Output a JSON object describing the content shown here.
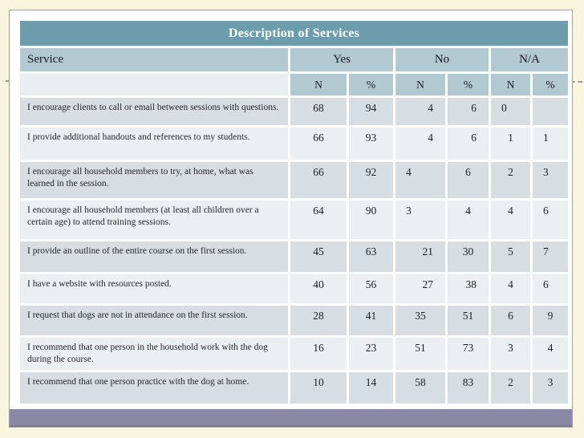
{
  "slide": {
    "table": {
      "title": "Description of Services",
      "header": {
        "service": "Service",
        "groups": [
          "Yes",
          "No",
          "N/A"
        ],
        "sub": [
          "N",
          "%",
          "N",
          "%",
          "N",
          "%"
        ]
      },
      "rows": [
        {
          "service": "I encourage clients to call or email between sessions with questions.",
          "values": [
            "68",
            "94",
            "4",
            "6",
            "0",
            ""
          ],
          "highlight": "yes",
          "aligns": [
            "c",
            "c",
            "r",
            "r",
            "l",
            "c"
          ]
        },
        {
          "service": "I provide additional handouts and references to my students.",
          "values": [
            "66",
            "93",
            "4",
            "6",
            "1",
            "1"
          ],
          "highlight": "yes",
          "aligns": [
            "c",
            "c",
            "r",
            "r",
            "c",
            "l"
          ]
        },
        {
          "service": "I encourage all household members to try, at home, what was learned in the session.",
          "values": [
            "66",
            "92",
            "4",
            "6",
            "2",
            "3"
          ],
          "highlight": "yes",
          "aligns": [
            "c",
            "c",
            "l",
            "c",
            "c",
            "l"
          ]
        },
        {
          "service": "I encourage all household members (at least all children over a certain age) to attend training sessions.",
          "values": [
            "64",
            "90",
            "3",
            "4",
            "4",
            "6"
          ],
          "highlight": "yes",
          "aligns": [
            "c",
            "c",
            "l",
            "c",
            "c",
            "l"
          ]
        },
        {
          "service": "I provide an outline of the entire course on the first session.",
          "values": [
            "45",
            "63",
            "21",
            "30",
            "5",
            "7"
          ],
          "highlight": "yes",
          "aligns": [
            "c",
            "c",
            "r",
            "c",
            "c",
            "l"
          ]
        },
        {
          "service": "I have a website with resources posted.",
          "values": [
            "40",
            "56",
            "27",
            "38",
            "4",
            "6"
          ],
          "highlight": "yes",
          "aligns": [
            "c",
            "c",
            "r",
            "r",
            "c",
            "l"
          ]
        },
        {
          "service": "I request that dogs are not in attendance on the first session.",
          "values": [
            "28",
            "41",
            "35",
            "51",
            "6",
            "9"
          ],
          "highlight": "no",
          "aligns": [
            "c",
            "c",
            "c",
            "c",
            "c",
            "c"
          ]
        },
        {
          "service": "I recommend that one person in the household work with the dog during the course.",
          "values": [
            "16",
            "23",
            "51",
            "73",
            "3",
            "4"
          ],
          "highlight": "no",
          "aligns": [
            "c",
            "c",
            "c",
            "c",
            "c",
            "c"
          ]
        },
        {
          "service": "I recommend that one person practice with the dog at home.",
          "values": [
            "10",
            "14",
            "58",
            "83",
            "2",
            "3"
          ],
          "highlight": "no",
          "aligns": [
            "c",
            "c",
            "c",
            "c",
            "c",
            "c"
          ]
        }
      ]
    },
    "colors": {
      "page_background": "#f9f4dd",
      "title_bar": "#6d9dac",
      "header_row": "#b3c9d2",
      "subheader_first_cell": "#e8eef1",
      "band_dark": "#d6dee3",
      "band_light": "#ebeff2",
      "highlight": "#f7ecc4",
      "footer_bar": "#8c89a6"
    }
  },
  "chart_data": {
    "type": "table",
    "title": "Description of Services",
    "columns": [
      "Service",
      "Yes N",
      "Yes %",
      "No N",
      "No %",
      "N/A N",
      "N/A %"
    ],
    "rows": [
      [
        "I encourage clients to call or email between sessions with questions.",
        68,
        94,
        4,
        6,
        0,
        null
      ],
      [
        "I provide additional handouts and references to my students.",
        66,
        93,
        4,
        6,
        1,
        1
      ],
      [
        "I encourage all household members to try, at home, what was learned in the session.",
        66,
        92,
        4,
        6,
        2,
        3
      ],
      [
        "I encourage all household members (at least all children over a certain age) to attend training sessions.",
        64,
        90,
        3,
        4,
        4,
        6
      ],
      [
        "I provide an outline of the entire course on the first session.",
        45,
        63,
        21,
        30,
        5,
        7
      ],
      [
        "I have a website with resources posted.",
        40,
        56,
        27,
        38,
        4,
        6
      ],
      [
        "I request that dogs are not in attendance on the first session.",
        28,
        41,
        35,
        51,
        6,
        9
      ],
      [
        "I recommend that one person in the household work with the dog during the course.",
        16,
        23,
        51,
        73,
        3,
        4
      ],
      [
        "I recommend that one person practice with the dog at home.",
        10,
        14,
        58,
        83,
        2,
        3
      ]
    ]
  }
}
